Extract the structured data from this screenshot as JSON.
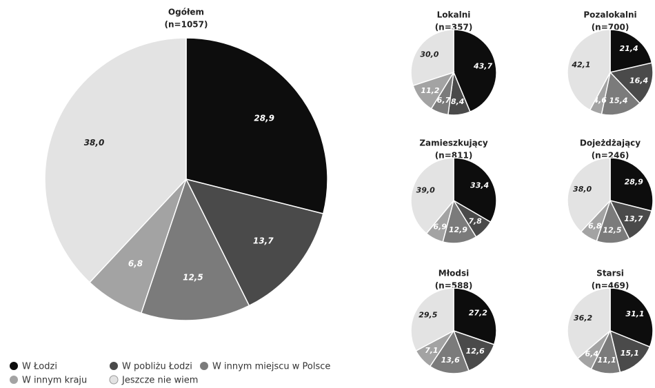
{
  "chart_data": [
    {
      "type": "pie",
      "title": "Ogółem",
      "subtitle": "(n=1057)",
      "categories": [
        "W Łodzi",
        "W pobliżu Łodzi",
        "W innym miejscu w Polsce",
        "W innym kraju",
        "Jeszcze nie wiem"
      ],
      "colors": [
        "#0d0d0d",
        "#4a4a4a",
        "#7b7b7b",
        "#a3a3a3",
        "#e3e3e3"
      ],
      "legend": "bottom-left",
      "values": [
        28.9,
        13.7,
        12.5,
        6.8,
        38.0
      ],
      "value_labels": [
        "28,9",
        "13,7",
        "12,5",
        "6,8",
        "38,0"
      ]
    },
    {
      "type": "pie",
      "title": "Lokalni",
      "subtitle": "(n=357)",
      "values": [
        43.7,
        8.4,
        6.7,
        11.2,
        30.0
      ],
      "value_labels": [
        "43,7",
        "8,4",
        "6,7",
        "11,2",
        "30,0"
      ]
    },
    {
      "type": "pie",
      "title": "Pozalokalni",
      "subtitle": "(n=700)",
      "values": [
        21.4,
        16.4,
        15.4,
        4.6,
        42.1
      ],
      "value_labels": [
        "21,4",
        "16,4",
        "15,4",
        "4,6",
        "42,1"
      ]
    },
    {
      "type": "pie",
      "title": "Zamieszkujący",
      "subtitle": "(n=811)",
      "values": [
        33.4,
        7.8,
        12.9,
        6.9,
        39.0
      ],
      "value_labels": [
        "33,4",
        "7,8",
        "12,9",
        "6,9",
        "39,0"
      ]
    },
    {
      "type": "pie",
      "title": "Dojeżdżający",
      "subtitle": "(n=246)",
      "values": [
        28.9,
        13.7,
        12.5,
        6.8,
        38.0
      ],
      "value_labels": [
        "28,9",
        "13,7",
        "12,5",
        "6,8",
        "38,0"
      ]
    },
    {
      "type": "pie",
      "title": "Młodsi",
      "subtitle": "(n=588)",
      "values": [
        27.2,
        12.6,
        13.6,
        7.1,
        29.5
      ],
      "value_labels": [
        "27,2",
        "12,6",
        "13,6",
        "7,1",
        "29,5"
      ]
    },
    {
      "type": "pie",
      "title": "Starsi",
      "subtitle": "(n=469)",
      "values": [
        31.1,
        15.1,
        11.1,
        6.4,
        36.2
      ],
      "value_labels": [
        "31,1",
        "15,1",
        "11,1",
        "6,4",
        "36,2"
      ]
    }
  ]
}
